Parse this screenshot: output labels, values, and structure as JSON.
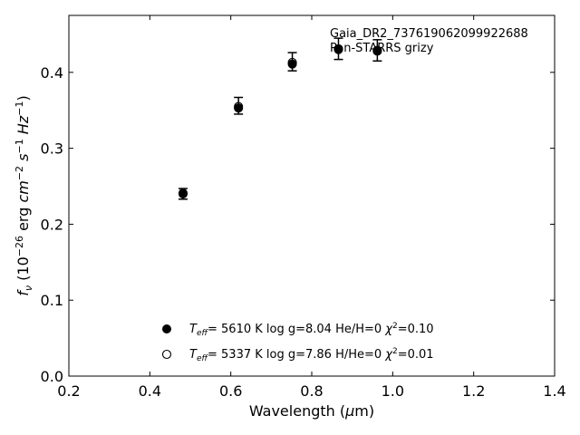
{
  "chart_data": {
    "type": "scatter",
    "xlabel_parts": [
      "Wavelength (",
      "μ",
      "m)"
    ],
    "ylabel_parts": [
      "f",
      "ν",
      " (10",
      "−26",
      " erg ",
      "cm",
      "−2",
      " ",
      "s",
      "−1",
      " ",
      "Hz",
      "−1",
      ")"
    ],
    "xlim": [
      0.2,
      1.4
    ],
    "ylim": [
      0.0,
      0.475
    ],
    "xticks": [
      0.2,
      0.4,
      0.6,
      0.8,
      1.0,
      1.2,
      1.4
    ],
    "xtick_labels": [
      "0.2",
      "0.4",
      "0.6",
      "0.8",
      "1.0",
      "1.2",
      "1.4"
    ],
    "yticks": [
      0.0,
      0.1,
      0.2,
      0.3,
      0.4
    ],
    "ytick_labels": [
      "0.0",
      "0.1",
      "0.2",
      "0.3",
      "0.4"
    ],
    "grid": false,
    "annotations": [
      "Gaia_DR2_737619062099922688",
      "Pan-STARRS grizy"
    ],
    "observed": {
      "x": [
        0.482,
        0.619,
        0.752,
        0.866,
        0.962
      ],
      "y": [
        0.24,
        0.356,
        0.414,
        0.431,
        0.429
      ],
      "yerr": [
        0.007,
        0.011,
        0.012,
        0.014,
        0.014
      ]
    },
    "series": [
      {
        "marker": "filled",
        "legend_parts": [
          "T",
          "eff",
          "=  5610 K  log g=8.04  He/H=0  ",
          "χ",
          "2",
          "=0.10"
        ],
        "x": [
          0.482,
          0.619,
          0.752,
          0.866,
          0.962
        ],
        "y": [
          0.24,
          0.353,
          0.411,
          0.43,
          0.428
        ]
      },
      {
        "marker": "open",
        "legend_parts": [
          "T",
          "eff",
          "=  5337 K  log g=7.86  H/He=0  ",
          "χ",
          "2",
          "=0.01"
        ],
        "x": [
          0.482,
          0.619,
          0.752,
          0.866,
          0.962
        ],
        "y": [
          0.241,
          0.355,
          0.413,
          0.431,
          0.429
        ]
      }
    ]
  }
}
